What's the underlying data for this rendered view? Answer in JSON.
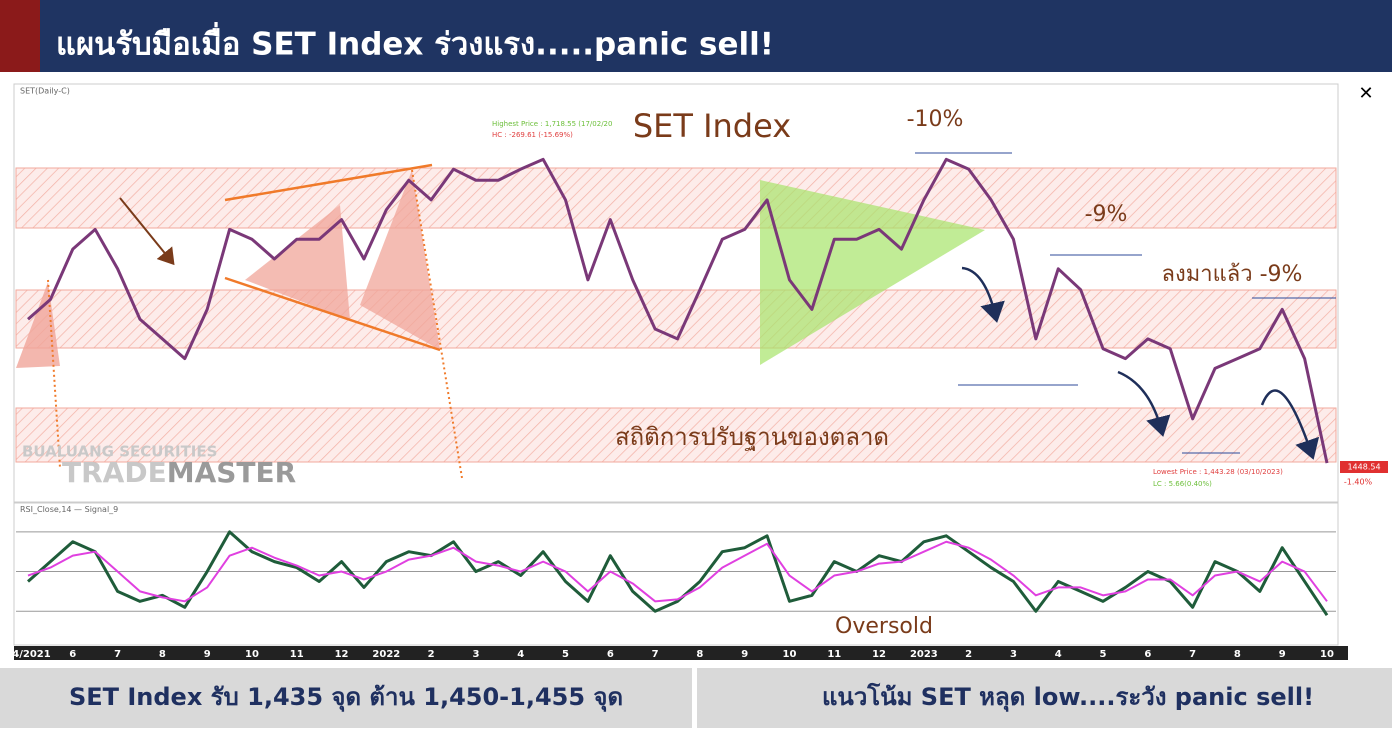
{
  "header": {
    "title": "แผนรับมือเมื่อ SET Index ร่วงแรง.....panic sell!"
  },
  "chart_data": [
    {
      "type": "line",
      "title": "SET Index",
      "categories": [
        "04/2021",
        null,
        "6",
        null,
        "7",
        null,
        "8",
        null,
        "9",
        null,
        "10",
        null,
        "11",
        null,
        "12",
        null,
        "2022",
        null,
        "2",
        null,
        "3",
        null,
        "4",
        null,
        "5",
        null,
        "6",
        null,
        "7",
        null,
        "8",
        null,
        "9",
        null,
        "10",
        null,
        "11",
        null,
        "12",
        null,
        "2023",
        null,
        "2",
        null,
        "3",
        null,
        "4",
        null,
        "5",
        null,
        "6",
        null,
        "7",
        null,
        "8",
        null,
        "9",
        null,
        "10"
      ],
      "series": [
        {
          "name": "SET(Daily-C)",
          "color": "#7a3878",
          "values": [
            1562,
            1578,
            1619,
            1635,
            1603,
            1562,
            1546,
            1530,
            1570,
            1635,
            1627,
            1611,
            1627,
            1627,
            1643,
            1611,
            1651,
            1675,
            1659,
            1684,
            1675,
            1675,
            1684,
            1692,
            1659,
            1594,
            1643,
            1594,
            1554,
            1546,
            1586,
            1627,
            1635,
            1659,
            1594,
            1570,
            1627,
            1627,
            1635,
            1619,
            1659,
            1692,
            1684,
            1659,
            1627,
            1546,
            1603,
            1586,
            1538,
            1530,
            1546,
            1538,
            1481,
            1522,
            1530,
            1538,
            1570,
            1530,
            1445
          ]
        }
      ],
      "ylim": [
        1415,
        1750
      ],
      "annotations": [
        "-10%",
        "-9%",
        "ลงมาแล้ว -9%",
        "สถิติการปรับฐานของตลาด",
        "Highest Price : 1,718.55 (17/02/20",
        "HC : -269.61 (-15.69%)",
        "Lowest Price : 1,443.28 (03/10/2023)",
        "LC : 5.66(0.40%)",
        "1448.54",
        "-1.40%"
      ]
    },
    {
      "type": "line",
      "series": [
        {
          "name": "RSI_Close,14",
          "color": "#1f5c3a",
          "values": [
            45,
            55,
            65,
            60,
            40,
            35,
            38,
            32,
            50,
            70,
            60,
            55,
            52,
            45,
            55,
            42,
            55,
            60,
            58,
            65,
            50,
            55,
            48,
            60,
            45,
            35,
            58,
            40,
            30,
            35,
            45,
            60,
            62,
            68,
            35,
            38,
            55,
            50,
            58,
            55,
            65,
            68,
            60,
            52,
            45,
            30,
            45,
            40,
            35,
            42,
            50,
            45,
            32,
            55,
            50,
            40,
            62,
            45,
            28
          ]
        },
        {
          "name": "Signal_9",
          "color": "#e040e0",
          "values": [
            48,
            52,
            58,
            60,
            50,
            40,
            37,
            35,
            42,
            58,
            62,
            57,
            53,
            48,
            50,
            46,
            50,
            56,
            58,
            62,
            55,
            53,
            50,
            55,
            50,
            40,
            50,
            44,
            35,
            36,
            42,
            52,
            58,
            64,
            48,
            40,
            48,
            50,
            54,
            55,
            60,
            65,
            62,
            56,
            48,
            38,
            42,
            42,
            38,
            40,
            46,
            46,
            38,
            48,
            50,
            45,
            55,
            50,
            35
          ]
        }
      ],
      "ylim": [
        13,
        81
      ],
      "hlines": [
        30,
        50,
        70
      ],
      "annotations": [
        "Oversold"
      ]
    }
  ],
  "logo": {
    "company": "BUALUANG SECURITIES",
    "brand_light": "TRADE",
    "brand_dark": "MASTER"
  },
  "footer": {
    "left": "SET Index รับ 1,435 จุด ต้าน 1,450-1,455 จุด",
    "right": "แนวโน้ม SET หลุด low....ระวัง panic sell!"
  }
}
